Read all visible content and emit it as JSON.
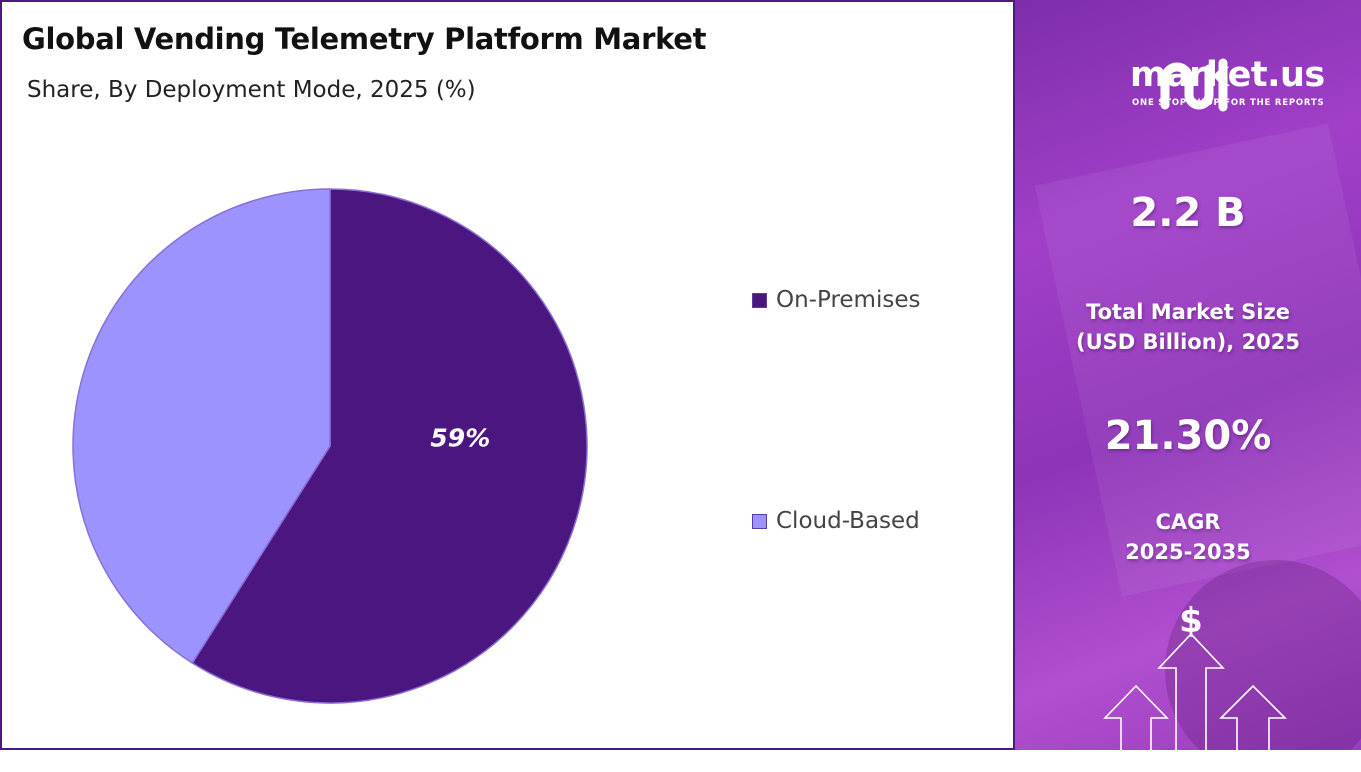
{
  "title": "Global Vending Telemetry Platform Market",
  "subtitle": "Share, By Deployment Mode, 2025 (%)",
  "chart_data": {
    "type": "pie",
    "categories": [
      "On-Premises",
      "Cloud-Based"
    ],
    "values": [
      59,
      41
    ],
    "data_labels": [
      "59%",
      ""
    ],
    "colors": [
      "#4b1680",
      "#9c93ff"
    ],
    "legend_placement": "right"
  },
  "legend": [
    {
      "label": "On-Premises",
      "color": "#4b1680"
    },
    {
      "label": "Cloud-Based",
      "color": "#9c93ff"
    }
  ],
  "sidebar": {
    "brand": "market.us",
    "tagline": "ONE STOP SHOP FOR THE REPORTS",
    "market_size_value": "2.2 B",
    "market_size_label_1": "Total Market Size",
    "market_size_label_2": "(USD Billion), 2025",
    "cagr_value": "21.30%",
    "cagr_label_1": "CAGR",
    "cagr_label_2": "2025-2035",
    "currency_symbol": "$"
  }
}
